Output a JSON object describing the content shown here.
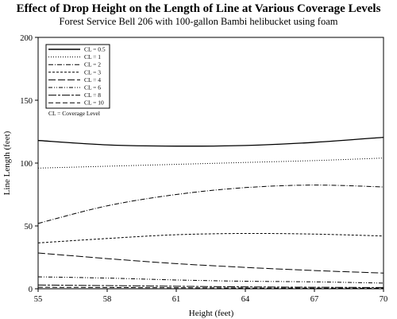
{
  "chart_data": {
    "type": "line",
    "title": "Effect of Drop Height on the Length of Line at Various Coverage Levels",
    "subtitle": "Forest Service Bell 206 with 100-gallon Bambi helibucket using foam",
    "xlabel": "Height (feet)",
    "ylabel": "Line Length (feet)",
    "xlim": [
      55,
      70
    ],
    "ylim": [
      0,
      200
    ],
    "xticks": [
      55,
      58,
      61,
      64,
      67,
      70
    ],
    "yticks": [
      0,
      50,
      100,
      150,
      200
    ],
    "grid": false,
    "legend_position": "top-left",
    "legend_note": "CL = Coverage Level",
    "x": [
      55,
      58,
      61,
      64,
      67,
      70
    ],
    "series": [
      {
        "name": "CL = 0.5",
        "style": "solid",
        "values": [
          118,
          114.5,
          113.5,
          114,
          116.5,
          120.5
        ]
      },
      {
        "name": "CL = 1",
        "style": "dotted",
        "values": [
          96,
          97.5,
          99,
          100.5,
          102,
          104
        ]
      },
      {
        "name": "CL = 2",
        "style": "dashdot",
        "values": [
          52,
          66,
          75,
          80.5,
          82.5,
          81
        ]
      },
      {
        "name": "CL = 3",
        "style": "dashed-short",
        "values": [
          36.5,
          40,
          43,
          44,
          43.5,
          42
        ]
      },
      {
        "name": "CL = 4",
        "style": "dashed-long",
        "values": [
          28.5,
          24,
          20,
          17,
          14.5,
          12.5
        ]
      },
      {
        "name": "CL = 6",
        "style": "dashdotdot",
        "values": [
          9.5,
          8.5,
          7,
          6,
          5.5,
          4.5
        ]
      },
      {
        "name": "CL = 8",
        "style": "longdash-short",
        "values": [
          3,
          2.5,
          2,
          1.5,
          1.2,
          1
        ]
      },
      {
        "name": "CL = 10",
        "style": "dashed-medium",
        "values": [
          1.2,
          1,
          0.8,
          0.6,
          0.5,
          0.4
        ]
      }
    ]
  }
}
